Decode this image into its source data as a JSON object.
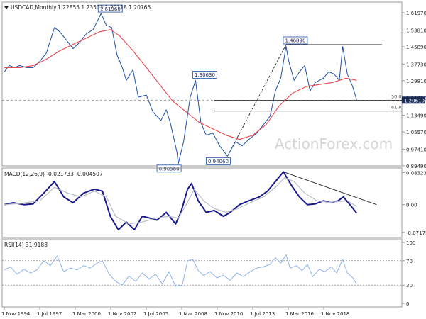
{
  "colors": {
    "price": "#1f4fa3",
    "sma": "#e8474f",
    "macd": "#1a1a8c",
    "signal": "#b7bcc7",
    "rsi": "#8fb3ea",
    "rule": "#222222",
    "frame": "#9a9a9a",
    "dash": "#777777",
    "watermark": "#d4d4d4"
  },
  "chart_data": [
    {
      "type": "line",
      "panel": "price",
      "title": "USDCAD,Monthly",
      "quote": "1.22855 1.23503 1.20118 1.20765",
      "ylim": [
        0.8948,
        1.6702
      ],
      "yticks": [
        "1.61970",
        "1.53810",
        "1.45890",
        "1.37730",
        "1.29810",
        "1.21650",
        "1.13490",
        "1.05570",
        "0.97410",
        "0.89490"
      ],
      "current_label": "1.20610",
      "grid": false,
      "watermark": "ActionForex.com",
      "series": [
        {
          "kind": "price",
          "points": [
            [
              1994.83,
              1.34
            ],
            [
              1995.2,
              1.37
            ],
            [
              1995.6,
              1.36
            ],
            [
              1996.0,
              1.37
            ],
            [
              1996.5,
              1.36
            ],
            [
              1997.0,
              1.36
            ],
            [
              1997.5,
              1.39
            ],
            [
              1998.0,
              1.43
            ],
            [
              1998.6,
              1.55
            ],
            [
              1999.0,
              1.53
            ],
            [
              1999.5,
              1.49
            ],
            [
              2000.0,
              1.45
            ],
            [
              2000.5,
              1.48
            ],
            [
              2001.0,
              1.52
            ],
            [
              2001.5,
              1.54
            ],
            [
              2001.9,
              1.59
            ],
            [
              2002.1,
              1.616
            ],
            [
              2002.5,
              1.56
            ],
            [
              2002.9,
              1.55
            ],
            [
              2003.3,
              1.42
            ],
            [
              2003.7,
              1.36
            ],
            [
              2004.0,
              1.3
            ],
            [
              2004.5,
              1.35
            ],
            [
              2004.9,
              1.22
            ],
            [
              2005.5,
              1.23
            ],
            [
              2006.0,
              1.15
            ],
            [
              2006.6,
              1.11
            ],
            [
              2007.0,
              1.16
            ],
            [
              2007.3,
              1.1
            ],
            [
              2007.8,
              0.96
            ],
            [
              2007.9,
              0.906
            ],
            [
              2008.3,
              1.01
            ],
            [
              2008.8,
              1.22
            ],
            [
              2009.2,
              1.3
            ],
            [
              2009.6,
              1.1
            ],
            [
              2010.0,
              1.04
            ],
            [
              2010.5,
              1.05
            ],
            [
              2011.0,
              0.99
            ],
            [
              2011.6,
              0.941
            ],
            [
              2012.2,
              1.01
            ],
            [
              2012.7,
              0.99
            ],
            [
              2013.2,
              1.02
            ],
            [
              2013.8,
              1.05
            ],
            [
              2014.3,
              1.09
            ],
            [
              2014.8,
              1.13
            ],
            [
              2015.2,
              1.25
            ],
            [
              2015.6,
              1.31
            ],
            [
              2016.0,
              1.46
            ],
            [
              2016.2,
              1.39
            ],
            [
              2016.6,
              1.3
            ],
            [
              2017.0,
              1.34
            ],
            [
              2017.4,
              1.37
            ],
            [
              2017.8,
              1.25
            ],
            [
              2018.2,
              1.29
            ],
            [
              2018.8,
              1.31
            ],
            [
              2019.2,
              1.34
            ],
            [
              2019.6,
              1.33
            ],
            [
              2020.0,
              1.3
            ],
            [
              2020.25,
              1.46
            ],
            [
              2020.6,
              1.33
            ],
            [
              2021.0,
              1.27
            ],
            [
              2021.3,
              1.2077
            ]
          ]
        },
        {
          "kind": "sma",
          "points": [
            [
              1994.83,
              1.36
            ],
            [
              1996.0,
              1.36
            ],
            [
              1997.0,
              1.37
            ],
            [
              1998.0,
              1.4
            ],
            [
              1999.0,
              1.44
            ],
            [
              2000.0,
              1.47
            ],
            [
              2001.0,
              1.5
            ],
            [
              2002.0,
              1.53
            ],
            [
              2002.8,
              1.54
            ],
            [
              2003.5,
              1.51
            ],
            [
              2004.5,
              1.44
            ],
            [
              2005.5,
              1.36
            ],
            [
              2006.5,
              1.28
            ],
            [
              2007.5,
              1.2
            ],
            [
              2008.5,
              1.15
            ],
            [
              2009.5,
              1.1
            ],
            [
              2010.5,
              1.07
            ],
            [
              2011.5,
              1.04
            ],
            [
              2012.5,
              1.02
            ],
            [
              2013.5,
              1.04
            ],
            [
              2014.5,
              1.09
            ],
            [
              2015.5,
              1.18
            ],
            [
              2016.5,
              1.24
            ],
            [
              2017.5,
              1.27
            ],
            [
              2018.5,
              1.28
            ],
            [
              2019.5,
              1.29
            ],
            [
              2020.5,
              1.31
            ],
            [
              2021.3,
              1.3
            ]
          ]
        }
      ],
      "annotations": [
        {
          "text": "1.61960",
          "x": 2002.1,
          "y": 1.6196
        },
        {
          "text": "1.30630",
          "x": 2009.2,
          "y": 1.3063
        },
        {
          "text": "0.90560",
          "x": 2007.9,
          "y": 0.9056
        },
        {
          "text": "0.94060",
          "x": 2011.6,
          "y": 0.9406
        },
        {
          "text": "1.46890",
          "x": 2016.0,
          "y": 1.4689
        }
      ],
      "fib_levels": [
        {
          "label": "50.0",
          "y": 1.2049
        },
        {
          "label": "61.8",
          "y": 1.1546
        }
      ],
      "lines": [
        {
          "name": "swing-line",
          "from": [
            2011.6,
            0.9406
          ],
          "to": [
            2016.0,
            1.4689
          ]
        },
        {
          "name": "high-line",
          "from": [
            2016.0,
            1.4689
          ],
          "to": [
            2023.2,
            1.4689
          ]
        }
      ]
    },
    {
      "type": "line",
      "panel": "macd",
      "title": "MACD(12,26,9) -0.021733 -0.004507",
      "ylim": [
        -0.085,
        0.095
      ],
      "yticks": [
        "0.083235",
        "0.00",
        "-0.071752"
      ],
      "series": [
        {
          "kind": "macd",
          "points": [
            [
              1994.83,
              0.0
            ],
            [
              1995.5,
              0.005
            ],
            [
              1996.3,
              0.0
            ],
            [
              1997.0,
              0.002
            ],
            [
              1997.8,
              0.03
            ],
            [
              1998.6,
              0.06
            ],
            [
              1999.3,
              0.02
            ],
            [
              2000.0,
              0.005
            ],
            [
              2000.8,
              0.03
            ],
            [
              2001.6,
              0.04
            ],
            [
              2002.2,
              0.035
            ],
            [
              2002.8,
              -0.03
            ],
            [
              2003.4,
              -0.065
            ],
            [
              2004.0,
              -0.045
            ],
            [
              2004.6,
              -0.065
            ],
            [
              2005.2,
              -0.03
            ],
            [
              2005.8,
              -0.035
            ],
            [
              2006.3,
              -0.04
            ],
            [
              2007.0,
              -0.02
            ],
            [
              2007.7,
              -0.05
            ],
            [
              2008.1,
              -0.02
            ],
            [
              2008.6,
              0.04
            ],
            [
              2008.9,
              0.055
            ],
            [
              2009.4,
              0.01
            ],
            [
              2010.0,
              -0.02
            ],
            [
              2010.6,
              -0.015
            ],
            [
              2011.3,
              -0.03
            ],
            [
              2011.8,
              -0.02
            ],
            [
              2012.5,
              0.0
            ],
            [
              2013.2,
              0.01
            ],
            [
              2014.0,
              0.02
            ],
            [
              2014.6,
              0.035
            ],
            [
              2015.2,
              0.06
            ],
            [
              2015.8,
              0.085
            ],
            [
              2016.4,
              0.05
            ],
            [
              2017.0,
              0.02
            ],
            [
              2017.6,
              0.0
            ],
            [
              2018.2,
              0.002
            ],
            [
              2018.8,
              0.01
            ],
            [
              2019.4,
              0.005
            ],
            [
              2019.9,
              0.01
            ],
            [
              2020.3,
              0.02
            ],
            [
              2020.8,
              0.0
            ],
            [
              2021.3,
              -0.021733
            ]
          ]
        },
        {
          "kind": "signal",
          "points": [
            [
              1994.83,
              0.0
            ],
            [
              1996.0,
              0.003
            ],
            [
              1997.5,
              0.01
            ],
            [
              1998.6,
              0.045
            ],
            [
              1999.6,
              0.03
            ],
            [
              2000.6,
              0.02
            ],
            [
              2001.6,
              0.035
            ],
            [
              2002.5,
              0.02
            ],
            [
              2003.2,
              -0.03
            ],
            [
              2004.2,
              -0.05
            ],
            [
              2005.2,
              -0.045
            ],
            [
              2006.2,
              -0.035
            ],
            [
              2007.2,
              -0.03
            ],
            [
              2007.9,
              -0.035
            ],
            [
              2008.5,
              0.0
            ],
            [
              2009.1,
              0.04
            ],
            [
              2009.8,
              0.01
            ],
            [
              2010.6,
              -0.01
            ],
            [
              2011.5,
              -0.02
            ],
            [
              2012.4,
              -0.01
            ],
            [
              2013.3,
              0.005
            ],
            [
              2014.3,
              0.02
            ],
            [
              2015.2,
              0.045
            ],
            [
              2015.9,
              0.07
            ],
            [
              2016.6,
              0.06
            ],
            [
              2017.4,
              0.03
            ],
            [
              2018.3,
              0.01
            ],
            [
              2019.2,
              0.006
            ],
            [
              2020.0,
              0.008
            ],
            [
              2020.6,
              0.01
            ],
            [
              2021.3,
              -0.004507
            ]
          ]
        }
      ],
      "lines": [
        {
          "name": "macd-trendline",
          "from": [
            2015.8,
            0.085
          ],
          "to": [
            2022.8,
            0.0
          ]
        }
      ]
    },
    {
      "type": "line",
      "panel": "rsi",
      "title": "RSI(14) 31.9188",
      "ylim": [
        0,
        100
      ],
      "yticks": [
        "100",
        "70",
        "30",
        "0"
      ],
      "dashed_levels": [
        70,
        30
      ],
      "series": [
        {
          "kind": "rsi",
          "points": [
            [
              1994.83,
              55
            ],
            [
              1995.3,
              60
            ],
            [
              1995.8,
              48
            ],
            [
              1996.3,
              56
            ],
            [
              1996.8,
              50
            ],
            [
              1997.3,
              55
            ],
            [
              1997.8,
              70
            ],
            [
              1998.3,
              62
            ],
            [
              1998.8,
              78
            ],
            [
              1999.3,
              52
            ],
            [
              1999.8,
              58
            ],
            [
              2000.3,
              55
            ],
            [
              2000.8,
              62
            ],
            [
              2001.3,
              58
            ],
            [
              2001.8,
              66
            ],
            [
              2002.2,
              70
            ],
            [
              2002.7,
              48
            ],
            [
              2003.2,
              36
            ],
            [
              2003.7,
              30
            ],
            [
              2004.2,
              45
            ],
            [
              2004.7,
              36
            ],
            [
              2005.2,
              50
            ],
            [
              2005.7,
              40
            ],
            [
              2006.2,
              48
            ],
            [
              2006.7,
              32
            ],
            [
              2007.2,
              52
            ],
            [
              2007.7,
              28
            ],
            [
              2008.2,
              30
            ],
            [
              2008.6,
              70
            ],
            [
              2009.0,
              72
            ],
            [
              2009.4,
              54
            ],
            [
              2009.8,
              46
            ],
            [
              2010.3,
              52
            ],
            [
              2010.8,
              42
            ],
            [
              2011.3,
              46
            ],
            [
              2011.8,
              38
            ],
            [
              2012.3,
              50
            ],
            [
              2012.8,
              44
            ],
            [
              2013.3,
              52
            ],
            [
              2013.8,
              58
            ],
            [
              2014.3,
              60
            ],
            [
              2014.8,
              64
            ],
            [
              2015.2,
              75
            ],
            [
              2015.6,
              66
            ],
            [
              2016.0,
              80
            ],
            [
              2016.3,
              58
            ],
            [
              2016.8,
              62
            ],
            [
              2017.2,
              54
            ],
            [
              2017.6,
              64
            ],
            [
              2018.0,
              44
            ],
            [
              2018.5,
              56
            ],
            [
              2018.9,
              52
            ],
            [
              2019.4,
              60
            ],
            [
              2019.8,
              50
            ],
            [
              2020.25,
              72
            ],
            [
              2020.6,
              50
            ],
            [
              2021.0,
              42
            ],
            [
              2021.3,
              31.9188
            ]
          ]
        }
      ]
    }
  ],
  "x_axis": {
    "labels": [
      "1 Nov 1994",
      "1 Jul 1997",
      "1 Mar 2000",
      "1 Nov 2002",
      "1 Jul 2005",
      "1 Mar 2008",
      "1 Nov 2010",
      "1 Jul 2013",
      "1 Mar 2016",
      "1 Nov 2018"
    ]
  }
}
